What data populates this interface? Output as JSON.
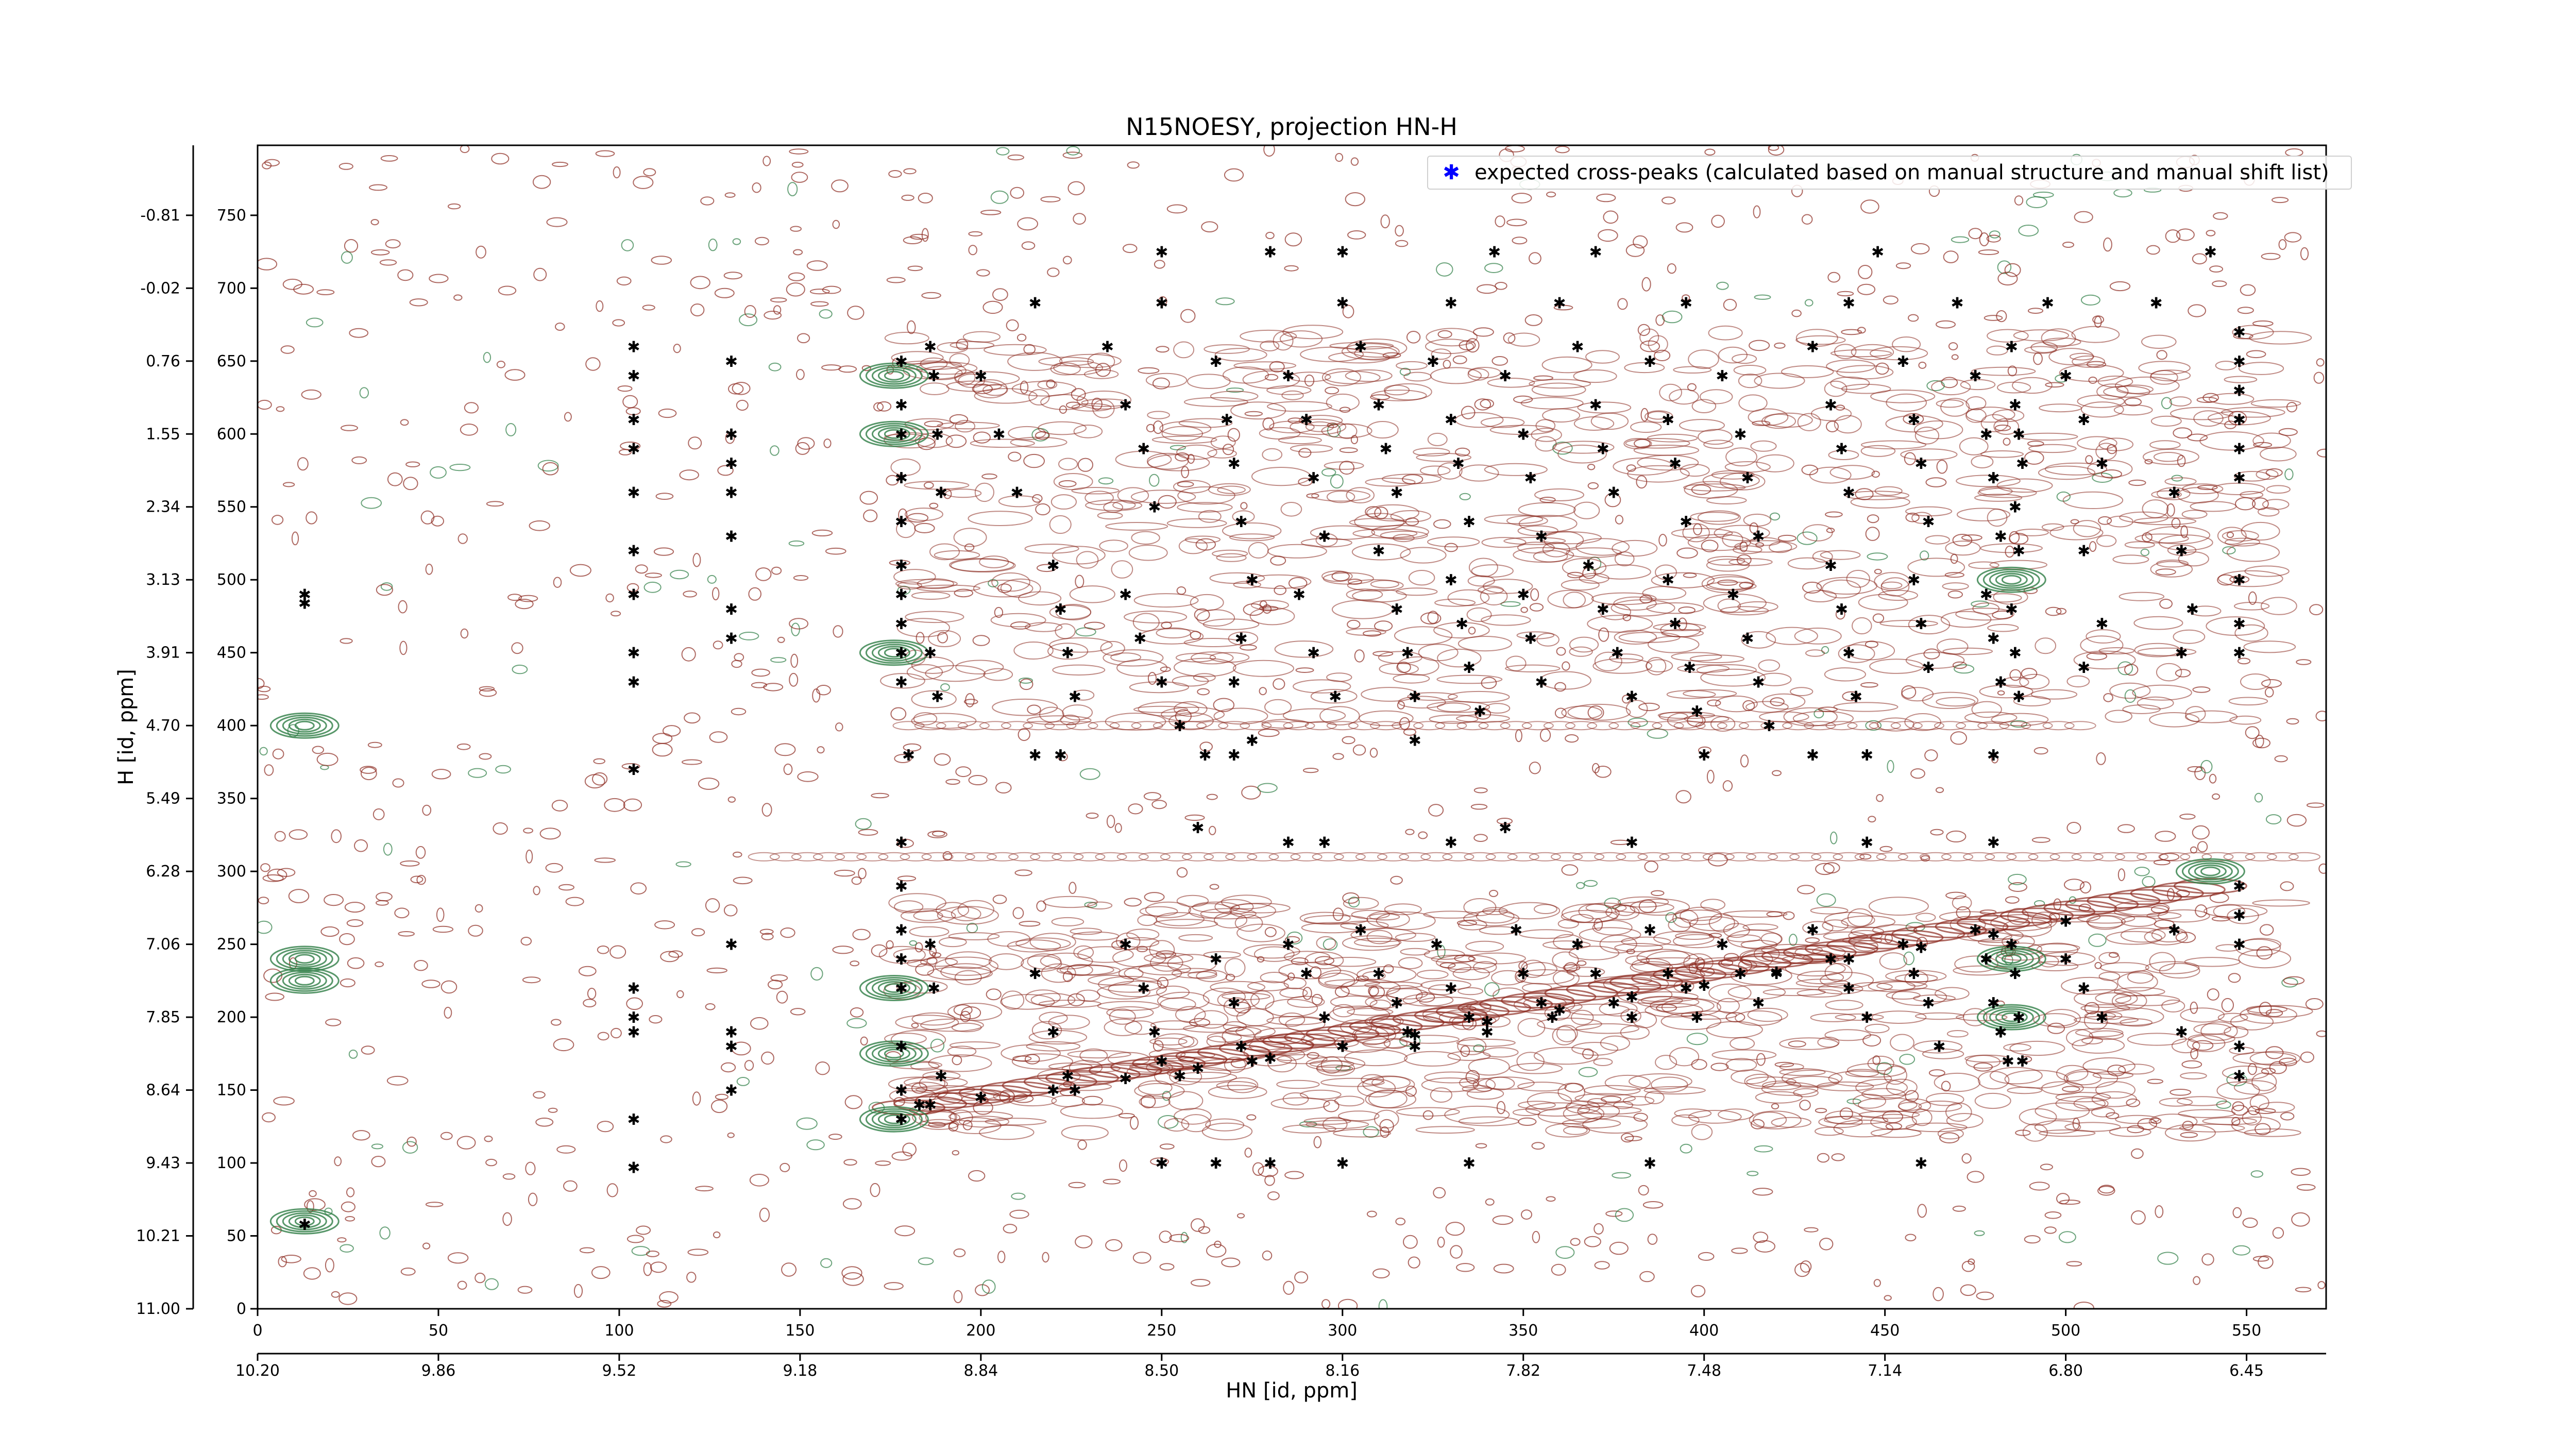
{
  "chart_data": {
    "type": "scatter",
    "title": "N15NOESY, projection HN-H",
    "xlabel": "HN [id, ppm]",
    "ylabel": "H [id, ppm]",
    "x_index_ticks": [
      "0",
      "50",
      "100",
      "150",
      "200",
      "250",
      "300",
      "350",
      "400",
      "450",
      "500",
      "550"
    ],
    "x_ppm_ticks": [
      "10.20",
      "9.86",
      "9.52",
      "9.18",
      "8.84",
      "8.50",
      "8.16",
      "7.82",
      "7.48",
      "7.14",
      "6.80",
      "6.45"
    ],
    "y_index_ticks": [
      "0",
      "50",
      "100",
      "150",
      "200",
      "250",
      "300",
      "350",
      "400",
      "450",
      "500",
      "550",
      "600",
      "650",
      "700",
      "750"
    ],
    "y_ppm_ticks": [
      "11.00",
      "10.21",
      "9.43",
      "8.64",
      "7.85",
      "7.06",
      "6.28",
      "5.49",
      "4.70",
      "3.91",
      "3.13",
      "2.34",
      "1.55",
      "0.76",
      "-0.02",
      "-0.81"
    ],
    "xlim": [
      0,
      572
    ],
    "ylim": [
      0,
      798
    ],
    "legend": {
      "entries": [
        "expected cross-peaks (calculated based on manual structure and manual shift list)"
      ],
      "placement": "top-right"
    },
    "colors": {
      "positive_contour": "#8b2a1f",
      "negative_contour": "#2e7d45",
      "peaks": "#0000ff"
    },
    "series": [
      {
        "name": "expected cross-peaks (calculated based on manual structure and manual shift list)",
        "points": [
          [
            13,
            490
          ],
          [
            13,
            484
          ],
          [
            13,
            58
          ],
          [
            104,
            660
          ],
          [
            104,
            640
          ],
          [
            104,
            610
          ],
          [
            104,
            590
          ],
          [
            104,
            560
          ],
          [
            104,
            520
          ],
          [
            104,
            490
          ],
          [
            104,
            450
          ],
          [
            104,
            430
          ],
          [
            104,
            370
          ],
          [
            104,
            220
          ],
          [
            104,
            200
          ],
          [
            104,
            190
          ],
          [
            104,
            130
          ],
          [
            104,
            97
          ],
          [
            131,
            650
          ],
          [
            131,
            600
          ],
          [
            131,
            580
          ],
          [
            131,
            560
          ],
          [
            131,
            530
          ],
          [
            131,
            480
          ],
          [
            131,
            460
          ],
          [
            131,
            250
          ],
          [
            131,
            190
          ],
          [
            131,
            180
          ],
          [
            131,
            150
          ],
          [
            178,
            650
          ],
          [
            178,
            620
          ],
          [
            178,
            600
          ],
          [
            178,
            570
          ],
          [
            178,
            540
          ],
          [
            178,
            510
          ],
          [
            178,
            490
          ],
          [
            178,
            470
          ],
          [
            178,
            450
          ],
          [
            178,
            430
          ],
          [
            178,
            320
          ],
          [
            178,
            290
          ],
          [
            178,
            260
          ],
          [
            178,
            240
          ],
          [
            178,
            220
          ],
          [
            178,
            180
          ],
          [
            178,
            150
          ],
          [
            178,
            130
          ],
          [
            186,
            660
          ],
          [
            187,
            640
          ],
          [
            188,
            600
          ],
          [
            189,
            560
          ],
          [
            186,
            450
          ],
          [
            188,
            420
          ],
          [
            186,
            250
          ],
          [
            187,
            220
          ],
          [
            189,
            160
          ],
          [
            186,
            140
          ],
          [
            200,
            640
          ],
          [
            205,
            600
          ],
          [
            210,
            560
          ],
          [
            220,
            510
          ],
          [
            222,
            480
          ],
          [
            224,
            450
          ],
          [
            226,
            420
          ],
          [
            222,
            380
          ],
          [
            215,
            230
          ],
          [
            220,
            190
          ],
          [
            224,
            160
          ],
          [
            226,
            150
          ],
          [
            235,
            660
          ],
          [
            240,
            620
          ],
          [
            245,
            590
          ],
          [
            248,
            550
          ],
          [
            240,
            490
          ],
          [
            244,
            460
          ],
          [
            250,
            430
          ],
          [
            255,
            400
          ],
          [
            240,
            250
          ],
          [
            245,
            220
          ],
          [
            248,
            190
          ],
          [
            250,
            170
          ],
          [
            255,
            160
          ],
          [
            265,
            650
          ],
          [
            268,
            610
          ],
          [
            270,
            580
          ],
          [
            272,
            540
          ],
          [
            275,
            500
          ],
          [
            272,
            460
          ],
          [
            270,
            430
          ],
          [
            262,
            380
          ],
          [
            265,
            240
          ],
          [
            270,
            210
          ],
          [
            272,
            180
          ],
          [
            275,
            170
          ],
          [
            285,
            640
          ],
          [
            290,
            610
          ],
          [
            292,
            570
          ],
          [
            295,
            530
          ],
          [
            288,
            490
          ],
          [
            292,
            450
          ],
          [
            298,
            420
          ],
          [
            285,
            250
          ],
          [
            290,
            230
          ],
          [
            295,
            200
          ],
          [
            300,
            180
          ],
          [
            305,
            660
          ],
          [
            310,
            620
          ],
          [
            312,
            590
          ],
          [
            315,
            560
          ],
          [
            310,
            520
          ],
          [
            315,
            480
          ],
          [
            318,
            450
          ],
          [
            320,
            420
          ],
          [
            305,
            260
          ],
          [
            310,
            230
          ],
          [
            315,
            210
          ],
          [
            318,
            190
          ],
          [
            320,
            180
          ],
          [
            325,
            650
          ],
          [
            330,
            610
          ],
          [
            332,
            580
          ],
          [
            335,
            540
          ],
          [
            330,
            500
          ],
          [
            333,
            470
          ],
          [
            335,
            440
          ],
          [
            338,
            410
          ],
          [
            326,
            250
          ],
          [
            330,
            220
          ],
          [
            335,
            200
          ],
          [
            340,
            190
          ],
          [
            345,
            640
          ],
          [
            350,
            600
          ],
          [
            352,
            570
          ],
          [
            355,
            530
          ],
          [
            350,
            490
          ],
          [
            352,
            460
          ],
          [
            355,
            430
          ],
          [
            345,
            330
          ],
          [
            348,
            260
          ],
          [
            350,
            230
          ],
          [
            355,
            210
          ],
          [
            358,
            200
          ],
          [
            365,
            660
          ],
          [
            370,
            620
          ],
          [
            372,
            590
          ],
          [
            375,
            560
          ],
          [
            368,
            510
          ],
          [
            372,
            480
          ],
          [
            376,
            450
          ],
          [
            380,
            420
          ],
          [
            365,
            250
          ],
          [
            370,
            230
          ],
          [
            375,
            210
          ],
          [
            380,
            200
          ],
          [
            385,
            650
          ],
          [
            390,
            610
          ],
          [
            392,
            580
          ],
          [
            395,
            540
          ],
          [
            390,
            500
          ],
          [
            392,
            470
          ],
          [
            396,
            440
          ],
          [
            398,
            410
          ],
          [
            385,
            260
          ],
          [
            390,
            230
          ],
          [
            395,
            220
          ],
          [
            398,
            200
          ],
          [
            405,
            640
          ],
          [
            410,
            600
          ],
          [
            412,
            570
          ],
          [
            415,
            530
          ],
          [
            408,
            490
          ],
          [
            412,
            460
          ],
          [
            415,
            430
          ],
          [
            418,
            400
          ],
          [
            405,
            250
          ],
          [
            410,
            230
          ],
          [
            415,
            210
          ],
          [
            420,
            230
          ],
          [
            430,
            660
          ],
          [
            435,
            620
          ],
          [
            438,
            590
          ],
          [
            440,
            560
          ],
          [
            435,
            510
          ],
          [
            438,
            480
          ],
          [
            440,
            450
          ],
          [
            442,
            420
          ],
          [
            430,
            260
          ],
          [
            435,
            240
          ],
          [
            440,
            220
          ],
          [
            445,
            200
          ],
          [
            455,
            650
          ],
          [
            458,
            610
          ],
          [
            460,
            580
          ],
          [
            462,
            540
          ],
          [
            458,
            500
          ],
          [
            460,
            470
          ],
          [
            462,
            440
          ],
          [
            455,
            250
          ],
          [
            458,
            230
          ],
          [
            462,
            210
          ],
          [
            465,
            180
          ],
          [
            475,
            640
          ],
          [
            478,
            600
          ],
          [
            480,
            570
          ],
          [
            482,
            530
          ],
          [
            478,
            490
          ],
          [
            480,
            460
          ],
          [
            482,
            430
          ],
          [
            475,
            260
          ],
          [
            478,
            240
          ],
          [
            480,
            210
          ],
          [
            482,
            190
          ],
          [
            484,
            170
          ],
          [
            485,
            660
          ],
          [
            486,
            620
          ],
          [
            487,
            600
          ],
          [
            488,
            580
          ],
          [
            486,
            550
          ],
          [
            487,
            520
          ],
          [
            485,
            480
          ],
          [
            486,
            450
          ],
          [
            487,
            420
          ],
          [
            485,
            250
          ],
          [
            486,
            230
          ],
          [
            487,
            200
          ],
          [
            488,
            170
          ],
          [
            500,
            640
          ],
          [
            505,
            610
          ],
          [
            510,
            580
          ],
          [
            505,
            520
          ],
          [
            510,
            470
          ],
          [
            505,
            440
          ],
          [
            500,
            240
          ],
          [
            505,
            220
          ],
          [
            510,
            200
          ],
          [
            530,
            560
          ],
          [
            532,
            520
          ],
          [
            535,
            480
          ],
          [
            532,
            450
          ],
          [
            530,
            260
          ],
          [
            532,
            190
          ],
          [
            548,
            670
          ],
          [
            548,
            650
          ],
          [
            548,
            630
          ],
          [
            548,
            610
          ],
          [
            548,
            590
          ],
          [
            548,
            570
          ],
          [
            548,
            500
          ],
          [
            548,
            470
          ],
          [
            548,
            450
          ],
          [
            548,
            290
          ],
          [
            548,
            270
          ],
          [
            548,
            250
          ],
          [
            548,
            180
          ],
          [
            548,
            160
          ],
          [
            250,
            725
          ],
          [
            280,
            725
          ],
          [
            300,
            725
          ],
          [
            342,
            725
          ],
          [
            370,
            725
          ],
          [
            448,
            725
          ],
          [
            540,
            725
          ],
          [
            215,
            690
          ],
          [
            250,
            690
          ],
          [
            300,
            690
          ],
          [
            330,
            690
          ],
          [
            360,
            690
          ],
          [
            395,
            690
          ],
          [
            440,
            690
          ],
          [
            470,
            690
          ],
          [
            495,
            690
          ],
          [
            525,
            690
          ],
          [
            183,
            140
          ],
          [
            200,
            145
          ],
          [
            220,
            150
          ],
          [
            240,
            158
          ],
          [
            260,
            165
          ],
          [
            280,
            172
          ],
          [
            300,
            180
          ],
          [
            320,
            188
          ],
          [
            340,
            197
          ],
          [
            360,
            205
          ],
          [
            380,
            214
          ],
          [
            400,
            222
          ],
          [
            420,
            231
          ],
          [
            440,
            240
          ],
          [
            460,
            248
          ],
          [
            480,
            257
          ],
          [
            500,
            266
          ],
          [
            250,
            100
          ],
          [
            265,
            100
          ],
          [
            280,
            100
          ],
          [
            300,
            100
          ],
          [
            335,
            100
          ],
          [
            385,
            100
          ],
          [
            460,
            100
          ],
          [
            180,
            380
          ],
          [
            215,
            380
          ],
          [
            270,
            380
          ],
          [
            275,
            390
          ],
          [
            320,
            390
          ],
          [
            400,
            380
          ],
          [
            430,
            380
          ],
          [
            445,
            380
          ],
          [
            480,
            380
          ],
          [
            260,
            330
          ],
          [
            285,
            320
          ],
          [
            295,
            320
          ],
          [
            330,
            320
          ],
          [
            380,
            320
          ],
          [
            445,
            320
          ],
          [
            480,
            320
          ]
        ]
      }
    ]
  }
}
